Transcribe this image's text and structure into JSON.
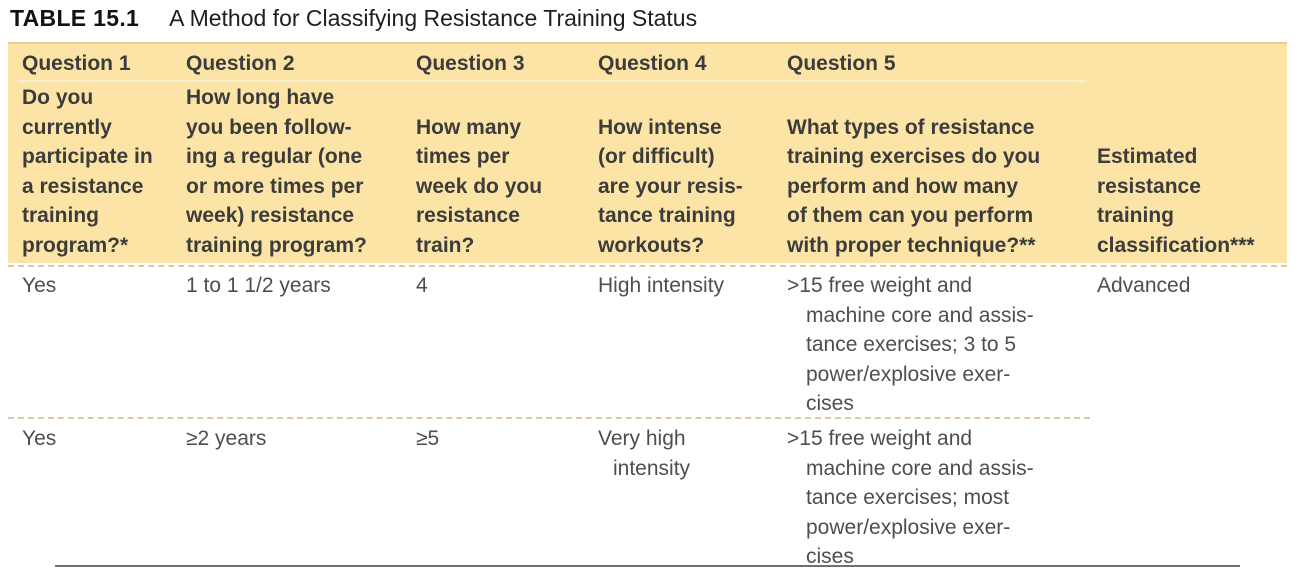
{
  "title": {
    "label": "TABLE 15.1",
    "text": "A Method for Classifying Resistance Training Status"
  },
  "colors": {
    "header_bg": "#fbe4a6",
    "header_top_edge": "#eecb8b",
    "header_rule": "#f8efd4",
    "dashed_separator": "#dcc9a6",
    "title_color": "#121212",
    "header_text": "#3c3c3c",
    "body_text": "#4e4e4e"
  },
  "table": {
    "question_labels": [
      "Question 1",
      "Question 2",
      "Question 3",
      "Question 4",
      "Question 5"
    ],
    "column_headers": [
      "Do you\ncurrently\nparticipate in\na resistance\ntraining\nprogram?*",
      "How long have\nyou been follow-\ning a regular (one\nor more times per\nweek) resistance\ntraining program?",
      "How many\ntimes per\nweek do you\nresistance\ntrain?",
      "How intense\n(or difficult)\nare your resis-\ntance training\nworkouts?",
      "What types of resistance\ntraining exercises do you\nperform and how many\nof them can you perform\nwith proper technique?**",
      "Estimated\nresistance\ntraining\nclassification***"
    ],
    "rows": [
      {
        "cells": [
          "Yes",
          "1 to 1 1/2 years",
          "4",
          "High intensity",
          ">15 free weight and\nmachine core and assis-\ntance exercises; 3 to 5\npower/explosive exer-\ncises",
          "Advanced"
        ]
      },
      {
        "cells": [
          "Yes",
          "≥2 years",
          "≥5",
          "Very high\nintensity",
          ">15 free weight and\nmachine core and assis-\ntance exercises; most\npower/explosive exer-\ncises",
          ""
        ]
      }
    ]
  }
}
